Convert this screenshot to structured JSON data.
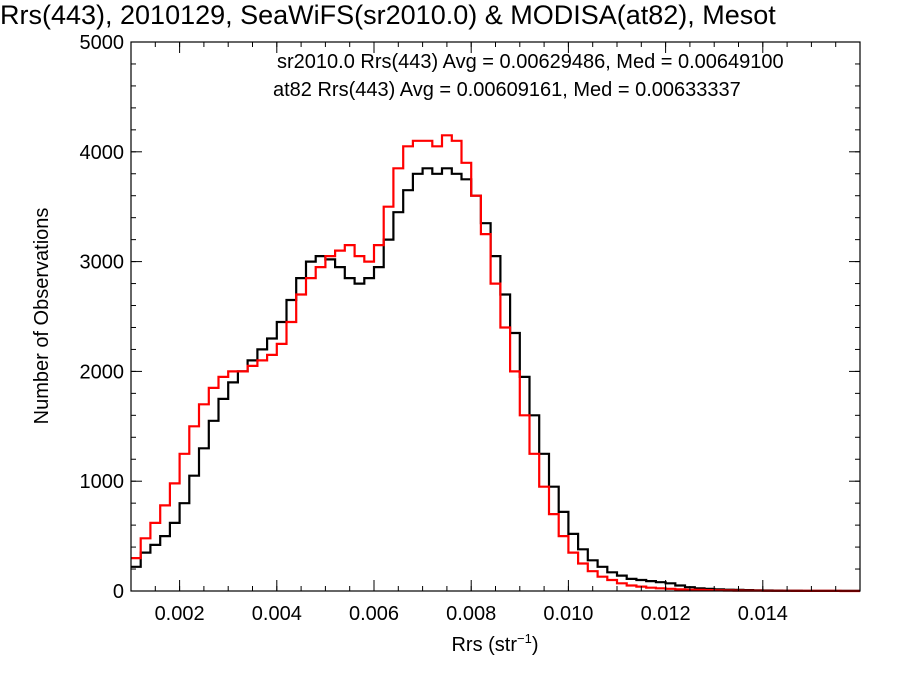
{
  "chart_data": {
    "type": "line",
    "title": "Rrs(443), 2010129, SeaWiFS(sr2010.0) & MODISA(at82), Mesot",
    "xlabel": "Rrs (str",
    "xlabel_sup": "−1",
    "xlabel_end": ")",
    "ylabel": "Number of Observations",
    "xlim": [
      0.001,
      0.016
    ],
    "ylim": [
      0,
      5000
    ],
    "x_ticks": [
      0.002,
      0.004,
      0.006,
      0.008,
      0.01,
      0.012,
      0.014
    ],
    "x_tick_labels": [
      "0.002",
      "0.004",
      "0.006",
      "0.008",
      "0.010",
      "0.012",
      "0.014"
    ],
    "y_ticks": [
      0,
      1000,
      2000,
      3000,
      4000,
      5000
    ],
    "y_tick_labels": [
      "0",
      "1000",
      "2000",
      "3000",
      "4000",
      "5000"
    ],
    "grid": false,
    "annotations": [
      {
        "text": "sr2010.0 Rrs(443) Avg = 0.00629486, Med = 0.00649100",
        "color": "#000000"
      },
      {
        "text": "at82 Rrs(443) Avg = 0.00609161, Med = 0.00633337",
        "color": "#ff0000"
      }
    ],
    "x": [
      0.001,
      0.0012,
      0.0014,
      0.0016,
      0.0018,
      0.002,
      0.0022,
      0.0024,
      0.0026,
      0.0028,
      0.003,
      0.0032,
      0.0034,
      0.0036,
      0.0038,
      0.004,
      0.0042,
      0.0044,
      0.0046,
      0.0048,
      0.005,
      0.0052,
      0.0054,
      0.0056,
      0.0058,
      0.006,
      0.0062,
      0.0064,
      0.0066,
      0.0068,
      0.007,
      0.0072,
      0.0074,
      0.0076,
      0.0078,
      0.008,
      0.0082,
      0.0084,
      0.0086,
      0.0088,
      0.009,
      0.0092,
      0.0094,
      0.0096,
      0.0098,
      0.01,
      0.0102,
      0.0104,
      0.0106,
      0.0108,
      0.011,
      0.0112,
      0.0114,
      0.0116,
      0.0118,
      0.012,
      0.0122,
      0.0124,
      0.0126,
      0.0128,
      0.013,
      0.0132,
      0.0134,
      0.0136,
      0.0138,
      0.014,
      0.0142,
      0.0144,
      0.0146,
      0.0148,
      0.015,
      0.0152,
      0.0154,
      0.0156,
      0.0158,
      0.016
    ],
    "series": [
      {
        "name": "sr2010.0",
        "color": "#000000",
        "values": [
          220,
          350,
          420,
          500,
          620,
          800,
          1050,
          1300,
          1550,
          1750,
          1900,
          2000,
          2100,
          2200,
          2300,
          2450,
          2650,
          2850,
          3000,
          3050,
          3020,
          2950,
          2850,
          2800,
          2850,
          2950,
          3200,
          3450,
          3650,
          3800,
          3850,
          3800,
          3850,
          3800,
          3750,
          3600,
          3350,
          3050,
          2700,
          2350,
          1950,
          1600,
          1250,
          950,
          720,
          520,
          380,
          280,
          220,
          170,
          140,
          110,
          100,
          90,
          80,
          70,
          50,
          35,
          25,
          20,
          15,
          12,
          10,
          8,
          6,
          5,
          4,
          3,
          3,
          2,
          2,
          2,
          1,
          1,
          1,
          1
        ]
      },
      {
        "name": "at82",
        "color": "#ff0000",
        "values": [
          300,
          480,
          620,
          780,
          980,
          1250,
          1500,
          1700,
          1850,
          1950,
          2000,
          2000,
          2050,
          2100,
          2150,
          2250,
          2450,
          2700,
          2850,
          2950,
          3050,
          3100,
          3150,
          3050,
          3000,
          3150,
          3500,
          3850,
          4050,
          4100,
          4100,
          4050,
          4150,
          4100,
          3900,
          3600,
          3250,
          2800,
          2400,
          2000,
          1600,
          1250,
          950,
          700,
          500,
          350,
          250,
          180,
          130,
          100,
          70,
          50,
          40,
          30,
          25,
          20,
          15,
          12,
          10,
          8,
          6,
          5,
          4,
          3,
          3,
          2,
          2,
          2,
          1,
          1,
          1,
          1,
          1,
          0,
          0,
          0
        ]
      }
    ]
  }
}
